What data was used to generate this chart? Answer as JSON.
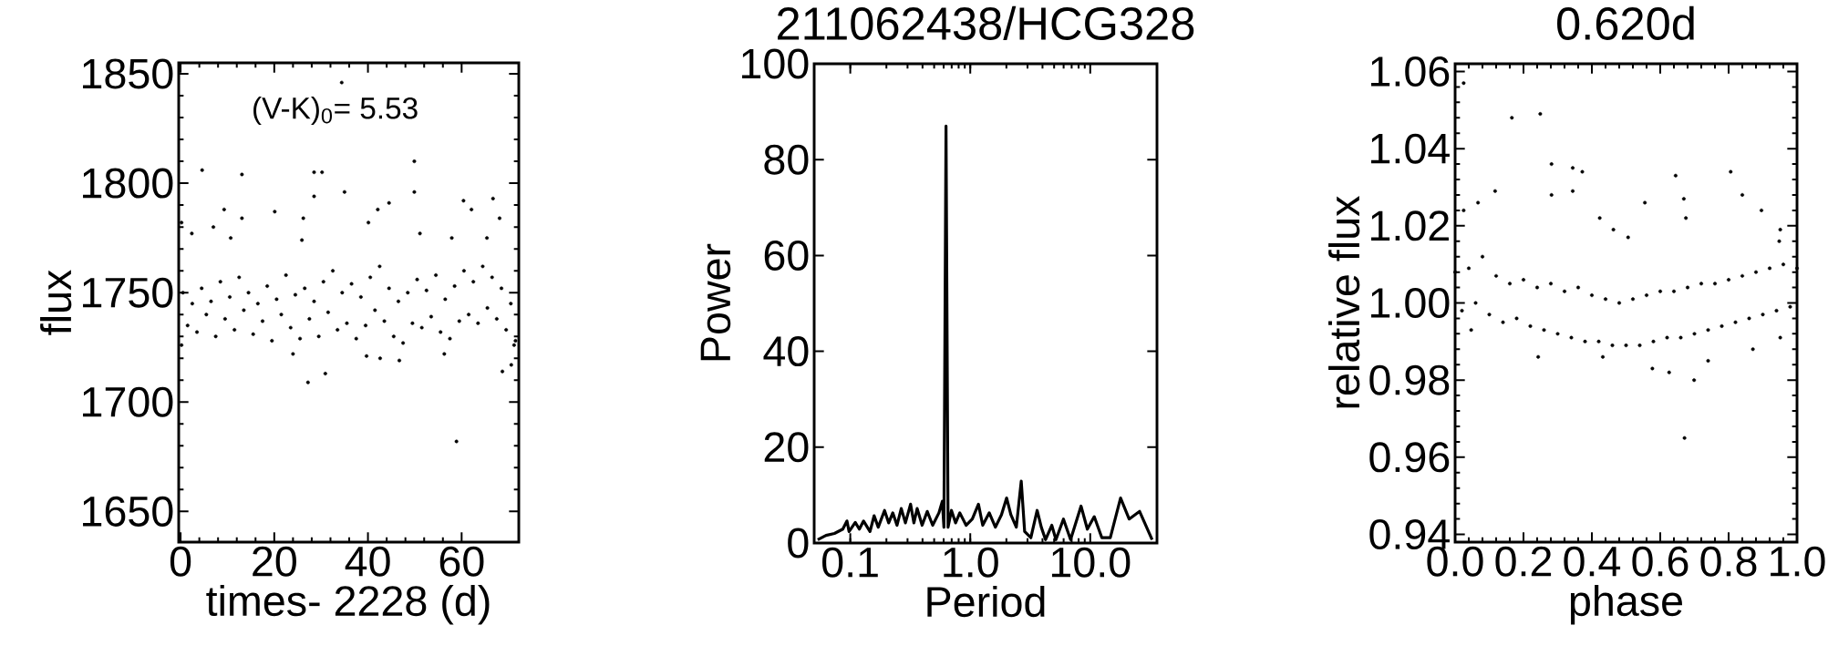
{
  "chart_data": [
    {
      "type": "scatter",
      "xlabel": "times- 2228 (d)",
      "ylabel": "flux",
      "color": "#000000",
      "marker": "circle",
      "annotations": [
        "(V-K)$_{0}$= 5.53"
      ],
      "xlim": [
        -0.4,
        72.2
      ],
      "ylim": [
        1636,
        1855
      ],
      "xticks": [
        0,
        20,
        40,
        60
      ],
      "yticks": [
        1650,
        1700,
        1750,
        1800,
        1850
      ],
      "x": [
        0.5,
        1.5,
        2.5,
        3.5,
        4.5,
        5.5,
        6.5,
        7.5,
        8.5,
        9.5,
        10.5,
        11.5,
        12.5,
        13.5,
        14.5,
        15.5,
        16.5,
        17.5,
        18.5,
        19.5,
        20.5,
        21.5,
        22.5,
        23.5,
        24.5,
        25.5,
        26.5,
        27.5,
        28.5,
        29.5,
        30.5,
        31.5,
        32.5,
        33.5,
        34.5,
        35.5,
        36.5,
        37.5,
        38.5,
        39.5,
        40.5,
        41.5,
        42.5,
        43.5,
        44.5,
        45.5,
        46.5,
        47.5,
        48.5,
        49.5,
        50.5,
        51.5,
        52.5,
        53.5,
        54.5,
        55.5,
        56.5,
        57.5,
        58.5,
        59.5,
        60.5,
        61.5,
        62.5,
        63.5,
        64.5,
        65.5,
        66.5,
        67.5,
        68.5,
        69.5,
        70.5,
        71.5,
        49.9,
        34.4,
        4.6,
        13.1,
        28.5,
        30.2,
        35.0,
        28.5,
        49.9,
        60.4,
        66.7,
        9.3,
        20.1,
        13.1,
        44.5,
        42.1,
        62.1,
        68.1,
        26.2,
        0.2,
        7.0,
        40.1,
        51.1,
        57.9,
        2.4,
        10.7,
        25.9,
        65.4,
        58.9,
        27.2,
        30.9,
        68.7,
        70.6,
        46.7,
        42.6,
        24.0,
        71.2,
        0.2,
        39.7,
        56.3
      ],
      "values": [
        1750,
        1735,
        1745,
        1732,
        1752,
        1740,
        1746,
        1730,
        1755,
        1738,
        1748,
        1733,
        1757,
        1742,
        1750,
        1731,
        1745,
        1737,
        1753,
        1728,
        1747,
        1740,
        1758,
        1734,
        1749,
        1729,
        1752,
        1738,
        1746,
        1730,
        1755,
        1741,
        1760,
        1733,
        1750,
        1736,
        1754,
        1729,
        1748,
        1735,
        1757,
        1742,
        1762,
        1737,
        1752,
        1730,
        1746,
        1727,
        1750,
        1736,
        1756,
        1734,
        1751,
        1739,
        1758,
        1732,
        1747,
        1729,
        1753,
        1737,
        1760,
        1740,
        1755,
        1736,
        1762,
        1743,
        1757,
        1738,
        1752,
        1733,
        1745,
        1728,
        1810,
        1846,
        1806,
        1804,
        1805,
        1805,
        1796,
        1794,
        1796,
        1792,
        1793,
        1788,
        1787,
        1784,
        1791,
        1788,
        1788,
        1784,
        1784,
        1782,
        1780,
        1782,
        1777,
        1775,
        1777,
        1775,
        1774,
        1775,
        1682,
        1709,
        1713,
        1714,
        1717,
        1719,
        1720,
        1722,
        1726,
        1726,
        1721,
        1722
      ]
    },
    {
      "type": "line",
      "title": "211062438/HCG328",
      "xlabel": "Period",
      "ylabel": "Power",
      "color": "#000000",
      "log": "x",
      "xlim": [
        0.05,
        36
      ],
      "ylim": [
        0,
        100
      ],
      "xticks": [
        {
          "value": 0.1,
          "label": "0.1"
        },
        {
          "value": 1,
          "label": "1.0"
        },
        {
          "value": 10,
          "label": "10.0"
        }
      ],
      "yticks": [
        0,
        20,
        40,
        60,
        80,
        100
      ],
      "x": [
        0.0535,
        0.0628,
        0.0738,
        0.0866,
        0.0938,
        0.0977,
        0.11,
        0.119,
        0.129,
        0.146,
        0.158,
        0.171,
        0.193,
        0.209,
        0.226,
        0.245,
        0.266,
        0.288,
        0.318,
        0.339,
        0.361,
        0.397,
        0.438,
        0.486,
        0.548,
        0.585,
        0.603,
        0.628,
        0.653,
        0.697,
        0.755,
        0.818,
        0.923,
        1.04,
        1.17,
        1.27,
        1.44,
        1.62,
        1.82,
        2.01,
        2.18,
        2.42,
        2.66,
        2.84,
        3.2,
        3.61,
        3.91,
        4.24,
        4.78,
        5.18,
        5.98,
        6.86,
        8.38,
        9.46,
        10.8,
        12.5,
        14.7,
        17.9,
        21.1,
        25.8,
        32.8
      ],
      "values": [
        0.7,
        1.6,
        2.0,
        2.9,
        4.6,
        2.4,
        4.3,
        2.9,
        4.6,
        2.4,
        5.7,
        3.3,
        6.8,
        4.2,
        6.3,
        3.7,
        7.2,
        4.2,
        8.1,
        4.2,
        7.2,
        3.7,
        6.6,
        3.7,
        6.3,
        8.7,
        3.3,
        87,
        3.3,
        6.8,
        4.2,
        6.3,
        3.7,
        5.0,
        8.1,
        3.7,
        6.3,
        3.3,
        5.9,
        9.4,
        5.9,
        3.3,
        12.9,
        2.4,
        1.1,
        6.8,
        3.3,
        0.7,
        3.7,
        0.7,
        5.0,
        0.7,
        7.7,
        2.9,
        5.5,
        1.1,
        1.1,
        9.4,
        5.0,
        6.6,
        0.7
      ]
    },
    {
      "type": "scatter",
      "title": "0.620d",
      "xlabel": "phase",
      "ylabel": "relative flux",
      "color": "#000000",
      "marker": "circle",
      "xlim": [
        0,
        1
      ],
      "ylim": [
        0.938,
        1.062
      ],
      "xticks": [
        {
          "value": 0,
          "label": "0.0"
        },
        0.2,
        0.4,
        0.6,
        0.8,
        {
          "value": 1,
          "label": "1.0"
        }
      ],
      "yticks": [
        0.94,
        0.96,
        0.98,
        {
          "value": 1,
          "label": "1.00"
        },
        1.02,
        1.04,
        1.06
      ],
      "x": [
        0.0,
        0.02,
        0.04,
        0.06,
        0.08,
        0.1,
        0.12,
        0.14,
        0.16,
        0.18,
        0.2,
        0.22,
        0.24,
        0.26,
        0.28,
        0.3,
        0.32,
        0.34,
        0.36,
        0.38,
        0.4,
        0.42,
        0.44,
        0.46,
        0.48,
        0.5,
        0.52,
        0.54,
        0.56,
        0.58,
        0.6,
        0.62,
        0.64,
        0.66,
        0.68,
        0.7,
        0.72,
        0.74,
        0.76,
        0.78,
        0.8,
        0.82,
        0.84,
        0.86,
        0.88,
        0.9,
        0.92,
        0.94,
        0.96,
        0.98,
        1.0,
        0.025,
        0.166,
        0.249,
        0.282,
        0.344,
        0.372,
        0.645,
        0.806,
        0.117,
        0.344,
        0.84,
        0.669,
        0.282,
        0.555,
        0.025,
        0.067,
        0.896,
        0.423,
        0.675,
        0.463,
        0.951,
        0.948,
        0.506,
        0.671,
        0.577,
        0.626,
        0.699,
        0.243,
        0.432,
        0.871,
        0.951,
        0.047,
        0.74
      ],
      "values": [
        1.008,
        0.998,
        1.009,
        1.0,
        1.012,
        0.997,
        1.007,
        0.995,
        1.005,
        0.996,
        1.006,
        0.994,
        1.004,
        0.993,
        1.005,
        0.992,
        1.003,
        0.991,
        1.004,
        0.99,
        1.002,
        0.99,
        1.001,
        0.989,
        1.0,
        0.989,
        1.001,
        0.989,
        1.002,
        0.99,
        1.003,
        0.991,
        1.003,
        0.991,
        1.004,
        0.992,
        1.005,
        0.993,
        1.005,
        0.994,
        1.006,
        0.995,
        1.007,
        0.996,
        1.008,
        0.997,
        1.009,
        0.998,
        1.01,
        0.999,
        1.009,
        1.057,
        1.048,
        1.049,
        1.036,
        1.035,
        1.034,
        1.033,
        1.034,
        1.029,
        1.029,
        1.028,
        1.027,
        1.028,
        1.026,
        1.024,
        1.026,
        1.024,
        1.022,
        1.022,
        1.019,
        1.019,
        1.016,
        1.017,
        0.965,
        0.983,
        0.982,
        0.98,
        0.986,
        0.986,
        0.988,
        0.991,
        0.993,
        0.985
      ]
    }
  ]
}
